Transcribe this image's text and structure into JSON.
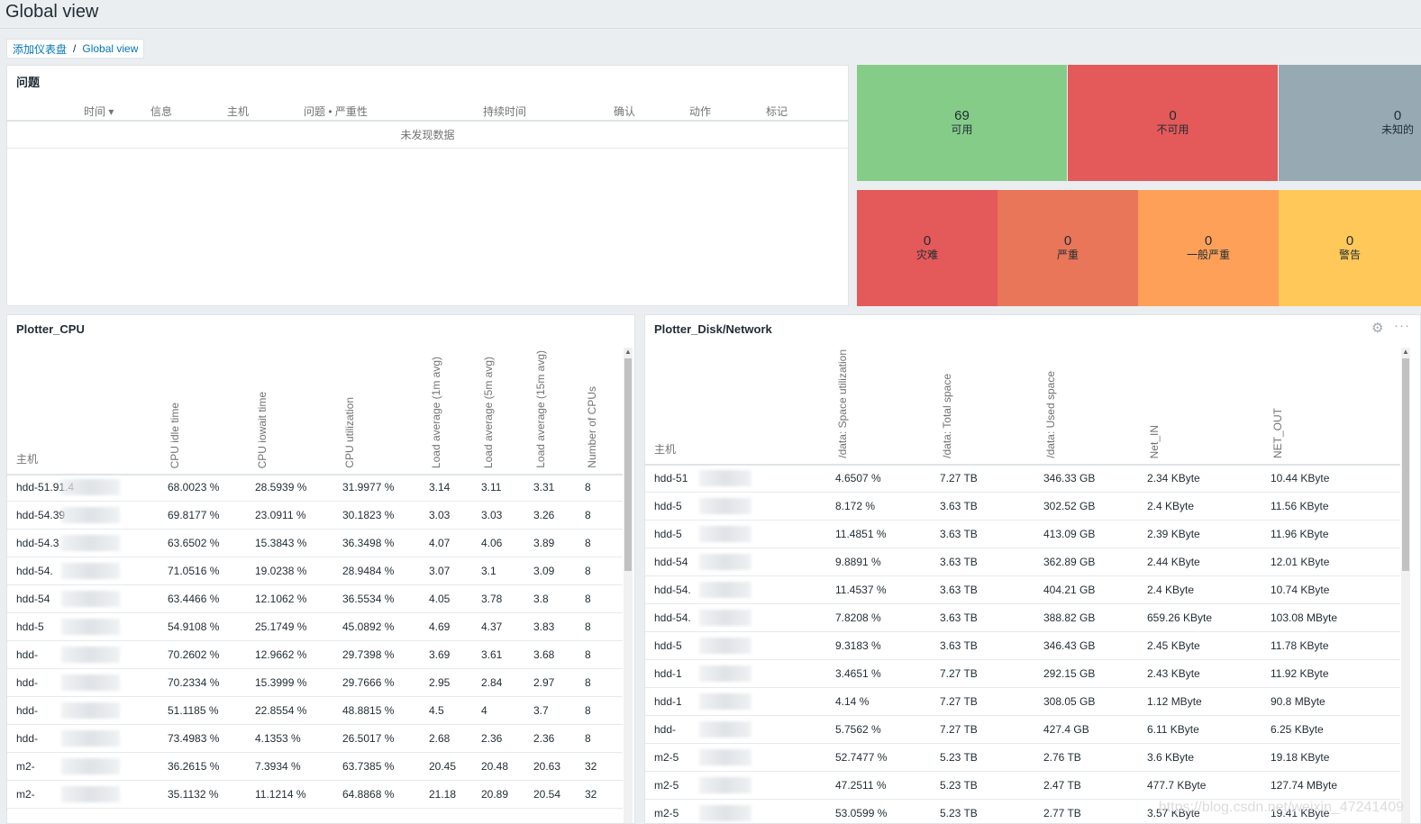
{
  "page_title": "Global view",
  "breadcrumb": [
    "添加仪表盘",
    "Global view"
  ],
  "problems": {
    "title": "问题",
    "columns": [
      "时间 ▾",
      "信息",
      "主机",
      "问题 • 严重性",
      "持续时间",
      "确认",
      "动作",
      "标记"
    ],
    "empty_text": "未发现数据"
  },
  "host_availability": [
    {
      "count": "69",
      "label": "可用",
      "color": "#86cc89"
    },
    {
      "count": "0",
      "label": "不可用",
      "color": "#e45959"
    },
    {
      "count": "0",
      "label": "未知的",
      "color": "#97aab3"
    }
  ],
  "severity": [
    {
      "count": "0",
      "label": "灾难",
      "color": "#e45959"
    },
    {
      "count": "0",
      "label": "严重",
      "color": "#e97659"
    },
    {
      "count": "0",
      "label": "一般严重",
      "color": "#ffa059"
    },
    {
      "count": "0",
      "label": "警告",
      "color": "#ffc859"
    }
  ],
  "cpu": {
    "title": "Plotter_CPU",
    "host_header": "主机",
    "columns": [
      "CPU idle time",
      "CPU iowait time",
      "CPU utilization",
      "Load average (1m avg)",
      "Load average (5m avg)",
      "Load average (15m avg)",
      "Number of CPUs"
    ],
    "rows": [
      {
        "host": "hdd-51.91.4",
        "v": [
          "68.0023 %",
          "28.5939 %",
          "31.9977 %",
          "3.14",
          "3.11",
          "3.31",
          "8"
        ]
      },
      {
        "host": "hdd-54.39",
        "v": [
          "69.8177 %",
          "23.0911 %",
          "30.1823 %",
          "3.03",
          "3.03",
          "3.26",
          "8"
        ]
      },
      {
        "host": "hdd-54.3",
        "v": [
          "63.6502 %",
          "15.3843 %",
          "36.3498 %",
          "4.07",
          "4.06",
          "3.89",
          "8"
        ]
      },
      {
        "host": "hdd-54.",
        "v": [
          "71.0516 %",
          "19.0238 %",
          "28.9484 %",
          "3.07",
          "3.1",
          "3.09",
          "8"
        ]
      },
      {
        "host": "hdd-54",
        "v": [
          "63.4466 %",
          "12.1062 %",
          "36.5534 %",
          "4.05",
          "3.78",
          "3.8",
          "8"
        ]
      },
      {
        "host": "hdd-5",
        "v": [
          "54.9108 %",
          "25.1749 %",
          "45.0892 %",
          "4.69",
          "4.37",
          "3.83",
          "8"
        ]
      },
      {
        "host": "hdd-",
        "v": [
          "70.2602 %",
          "12.9662 %",
          "29.7398 %",
          "3.69",
          "3.61",
          "3.68",
          "8"
        ]
      },
      {
        "host": "hdd-",
        "v": [
          "70.2334 %",
          "15.3999 %",
          "29.7666 %",
          "2.95",
          "2.84",
          "2.97",
          "8"
        ]
      },
      {
        "host": "hdd-",
        "v": [
          "51.1185 %",
          "22.8554 %",
          "48.8815 %",
          "4.5",
          "4",
          "3.7",
          "8"
        ]
      },
      {
        "host": "hdd-",
        "v": [
          "73.4983 %",
          "4.1353 %",
          "26.5017 %",
          "2.68",
          "2.36",
          "2.36",
          "8"
        ]
      },
      {
        "host": "m2-",
        "v": [
          "36.2615 %",
          "7.3934 %",
          "63.7385 %",
          "20.45",
          "20.48",
          "20.63",
          "32"
        ]
      },
      {
        "host": "m2-",
        "v": [
          "35.1132 %",
          "11.1214 %",
          "64.8868 %",
          "21.18",
          "20.89",
          "20.54",
          "32"
        ]
      }
    ]
  },
  "disk": {
    "title": "Plotter_Disk/Network",
    "host_header": "主机",
    "columns": [
      "/data: Space utilization",
      "/data: Total space",
      "/data: Used space",
      "Net_IN",
      "NET_OUT"
    ],
    "rows": [
      {
        "host": "hdd-51",
        "v": [
          "4.6507 %",
          "7.27 TB",
          "346.33 GB",
          "2.34 KByte",
          "10.44 KByte"
        ]
      },
      {
        "host": "hdd-5",
        "v": [
          "8.172 %",
          "3.63 TB",
          "302.52 GB",
          "2.4 KByte",
          "11.56 KByte"
        ]
      },
      {
        "host": "hdd-5",
        "v": [
          "11.4851 %",
          "3.63 TB",
          "413.09 GB",
          "2.39 KByte",
          "11.96 KByte"
        ]
      },
      {
        "host": "hdd-54",
        "v": [
          "9.8891 %",
          "3.63 TB",
          "362.89 GB",
          "2.44 KByte",
          "12.01 KByte"
        ]
      },
      {
        "host": "hdd-54.",
        "v": [
          "11.4537 %",
          "3.63 TB",
          "404.21 GB",
          "2.4 KByte",
          "10.74 KByte"
        ]
      },
      {
        "host": "hdd-54.",
        "v": [
          "7.8208 %",
          "3.63 TB",
          "388.82 GB",
          "659.26 KByte",
          "103.08 MByte"
        ]
      },
      {
        "host": "hdd-5",
        "v": [
          "9.3183 %",
          "3.63 TB",
          "346.43 GB",
          "2.45 KByte",
          "11.78 KByte"
        ]
      },
      {
        "host": "hdd-1",
        "v": [
          "3.4651 %",
          "7.27 TB",
          "292.15 GB",
          "2.43 KByte",
          "11.92 KByte"
        ]
      },
      {
        "host": "hdd-1",
        "v": [
          "4.14 %",
          "7.27 TB",
          "308.05 GB",
          "1.12 MByte",
          "90.8 MByte"
        ]
      },
      {
        "host": "hdd-",
        "v": [
          "5.7562 %",
          "7.27 TB",
          "427.4 GB",
          "6.11 KByte",
          "6.25 KByte"
        ]
      },
      {
        "host": "m2-5",
        "v": [
          "52.7477 %",
          "5.23 TB",
          "2.76 TB",
          "3.6 KByte",
          "19.18 KByte"
        ]
      },
      {
        "host": "m2-5",
        "v": [
          "47.2511 %",
          "5.23 TB",
          "2.47 TB",
          "477.7 KByte",
          "127.74 MByte"
        ]
      },
      {
        "host": "m2-5",
        "v": [
          "53.0599 %",
          "5.23 TB",
          "2.77 TB",
          "3.57 KByte",
          "19.41 KByte"
        ]
      }
    ]
  },
  "watermark": "https://blog.csdn.net/weixin_47241409",
  "icons": {
    "settings": "gear-icon",
    "more": "ellipsis-icon"
  }
}
